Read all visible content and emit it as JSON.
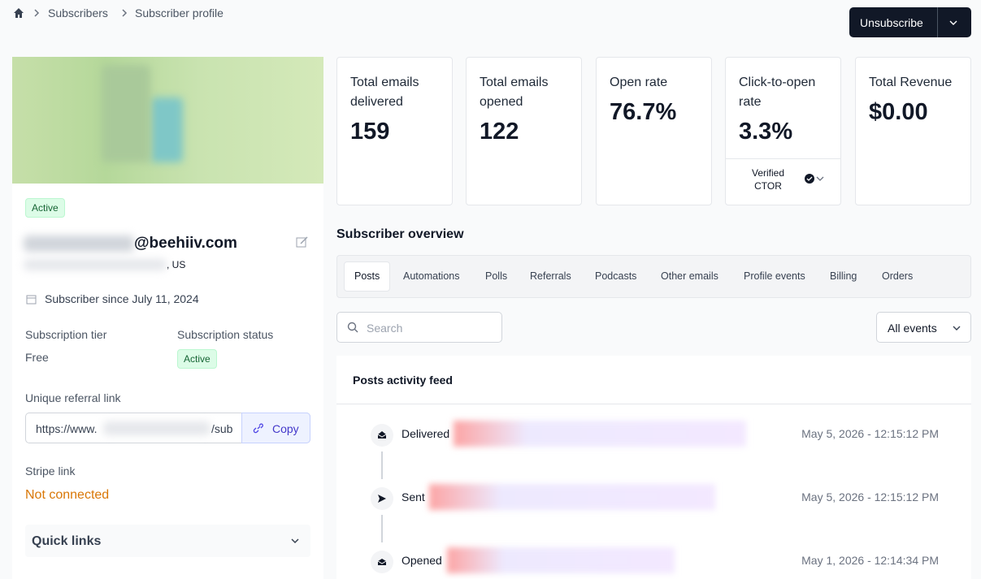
{
  "breadcrumb": [
    "Subscribers",
    "Subscriber profile"
  ],
  "header": {
    "action": "Unsubscribe"
  },
  "profile": {
    "badge": "Active",
    "email_domain": "@beehiiv.com",
    "location": ", US",
    "since": "Subscriber since July 11, 2024",
    "tier_label": "Subscription tier",
    "tier": "Free",
    "status_label": "Subscription status",
    "status": "Active",
    "referral_label": "Unique referral link",
    "referral_start": "https://www.",
    "referral_end": "/sub",
    "copy": "Copy",
    "stripe_label": "Stripe link",
    "stripe_value": "Not connected",
    "quick_links": "Quick links"
  },
  "stats": [
    {
      "label": "Total emails delivered",
      "value": "159"
    },
    {
      "label": "Total emails opened",
      "value": "122"
    },
    {
      "label": "Open rate",
      "value": "76.7%"
    },
    {
      "label": "Click-to-open rate",
      "value": "3.3%",
      "footer": "Verified CTOR"
    },
    {
      "label": "Total Revenue",
      "value": "$0.00"
    }
  ],
  "overview": {
    "title": "Subscriber overview",
    "tabs": [
      "Posts",
      "Automations",
      "Polls",
      "Referrals",
      "Podcasts",
      "Other emails",
      "Profile events",
      "Billing",
      "Orders"
    ],
    "search": "Search",
    "filter": "All events",
    "feed_title": "Posts activity feed",
    "events": [
      {
        "label": "Delivered",
        "time": "May 5, 2026 - 12:15:12 PM"
      },
      {
        "label": "Sent",
        "time": "May 5, 2026 - 12:15:12 PM"
      },
      {
        "label": "Opened",
        "time": "May 1, 2026 - 12:14:34 PM"
      }
    ]
  }
}
